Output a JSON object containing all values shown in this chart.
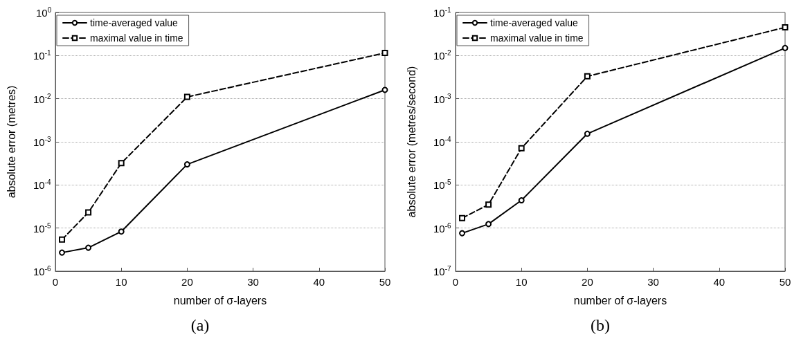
{
  "chart_data": [
    {
      "type": "line",
      "xlabel": "number of σ-layers",
      "ylabel": "absolute error (metres)",
      "annotations": [
        "(a)"
      ],
      "x": [
        1,
        5,
        10,
        20,
        50
      ],
      "xlim": [
        0,
        50
      ],
      "xticks": [
        0,
        10,
        20,
        30,
        40,
        50
      ],
      "ylim": [
        1e-06,
        1
      ],
      "yticks": [
        {
          "value": 1e-06,
          "label": "10$^{-6}$"
        },
        {
          "value": 1e-05,
          "label": "10$^{-5}$"
        },
        {
          "value": 0.0001,
          "label": "10$^{-4}$"
        },
        {
          "value": 0.001,
          "label": "10$^{-3}$"
        },
        {
          "value": 0.01,
          "label": "10$^{-2}$"
        },
        {
          "value": 0.1,
          "label": "10$^{-1}$"
        },
        {
          "value": 1,
          "label": "10$^{0}$"
        }
      ],
      "log": "y",
      "grid": "y",
      "legend": "top left",
      "series": [
        {
          "name": "time-averaged value",
          "color": "#000000",
          "values": [
            2.7e-06,
            3.5e-06,
            8.3e-06,
            0.0003,
            0.016
          ],
          "marker": "circle",
          "line_style": "solid"
        },
        {
          "name": "maximal value in time",
          "color": "#000000",
          "values": [
            5.4e-06,
            2.3e-05,
            0.00032,
            0.011,
            0.115
          ],
          "marker": "square",
          "line_style": "dashed"
        }
      ]
    },
    {
      "type": "line",
      "xlabel": "number of σ-layers",
      "ylabel": "absolute error (metres/second)",
      "annotations": [
        "(b)"
      ],
      "x": [
        1,
        5,
        10,
        20,
        50
      ],
      "xlim": [
        0,
        50
      ],
      "xticks": [
        0,
        10,
        20,
        30,
        40,
        50
      ],
      "ylim": [
        1e-07,
        0.1
      ],
      "yticks": [
        {
          "value": 1e-07,
          "label": "10$^{-7}$"
        },
        {
          "value": 1e-06,
          "label": "10$^{-6}$"
        },
        {
          "value": 1e-05,
          "label": "10$^{-5}$"
        },
        {
          "value": 0.0001,
          "label": "10$^{-4}$"
        },
        {
          "value": 0.001,
          "label": "10$^{-3}$"
        },
        {
          "value": 0.01,
          "label": "10$^{-2}$"
        },
        {
          "value": 0.1,
          "label": "10$^{-1}$"
        }
      ],
      "log": "y",
      "grid": "y",
      "legend": "top left",
      "series": [
        {
          "name": "time-averaged value",
          "color": "#000000",
          "values": [
            7.6e-07,
            1.24e-06,
            4.4e-06,
            0.000154,
            0.015
          ],
          "marker": "circle",
          "line_style": "solid"
        },
        {
          "name": "maximal value in time",
          "color": "#000000",
          "values": [
            1.7e-06,
            3.5e-06,
            7.1e-05,
            0.0033,
            0.045
          ],
          "marker": "square",
          "line_style": "dashed"
        }
      ]
    }
  ]
}
